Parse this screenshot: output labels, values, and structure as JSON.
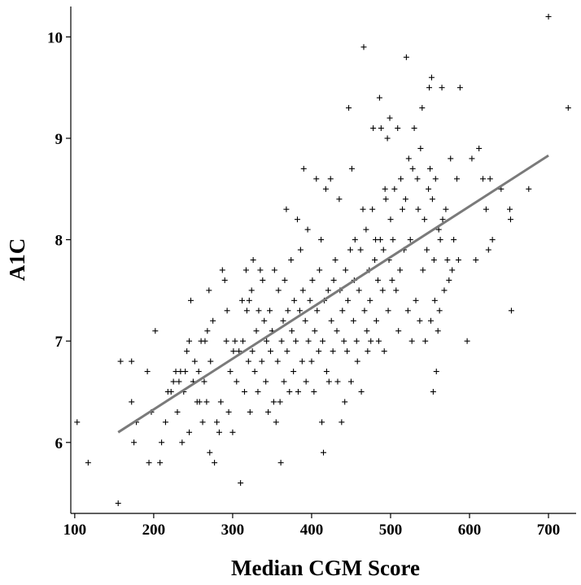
{
  "chart_data": {
    "type": "scatter",
    "title": "",
    "xlabel": "Median CGM Score",
    "ylabel": "A1C",
    "xlim": [
      95,
      735
    ],
    "ylim": [
      5.3,
      10.3
    ],
    "xticks": [
      100,
      200,
      300,
      400,
      500,
      600,
      700
    ],
    "yticks": [
      6,
      7,
      8,
      9,
      10
    ],
    "marker": "+",
    "grid": false,
    "legend": "none",
    "colors": {
      "points": "#000000",
      "fit_line": "#7a7a7a"
    },
    "fit_line": {
      "x": [
        155,
        700
      ],
      "y": [
        6.1,
        8.83
      ]
    },
    "series": [
      {
        "points": [
          [
            103,
            6.2
          ],
          [
            117,
            5.8
          ],
          [
            155,
            5.4
          ],
          [
            158,
            6.8
          ],
          [
            172,
            6.8
          ],
          [
            172,
            6.4
          ],
          [
            175,
            6.0
          ],
          [
            178,
            6.2
          ],
          [
            192,
            6.7
          ],
          [
            194,
            5.8
          ],
          [
            197,
            6.3
          ],
          [
            202,
            7.1
          ],
          [
            208,
            5.8
          ],
          [
            210,
            6.0
          ],
          [
            215,
            6.2
          ],
          [
            218,
            6.5
          ],
          [
            222,
            6.5
          ],
          [
            225,
            6.6
          ],
          [
            228,
            6.7
          ],
          [
            230,
            6.3
          ],
          [
            232,
            6.6
          ],
          [
            234,
            6.7
          ],
          [
            236,
            6.0
          ],
          [
            238,
            6.5
          ],
          [
            240,
            6.7
          ],
          [
            242,
            6.9
          ],
          [
            245,
            7.0
          ],
          [
            245,
            6.1
          ],
          [
            247,
            7.4
          ],
          [
            250,
            6.6
          ],
          [
            252,
            6.8
          ],
          [
            255,
            6.4
          ],
          [
            257,
            6.7
          ],
          [
            258,
            6.4
          ],
          [
            260,
            7.0
          ],
          [
            262,
            6.2
          ],
          [
            264,
            6.6
          ],
          [
            265,
            7.0
          ],
          [
            267,
            6.4
          ],
          [
            268,
            7.1
          ],
          [
            270,
            7.5
          ],
          [
            271,
            5.9
          ],
          [
            272,
            6.8
          ],
          [
            275,
            7.2
          ],
          [
            277,
            5.8
          ],
          [
            280,
            6.2
          ],
          [
            283,
            6.1
          ],
          [
            285,
            6.4
          ],
          [
            287,
            7.7
          ],
          [
            290,
            7.6
          ],
          [
            292,
            7.0
          ],
          [
            293,
            7.3
          ],
          [
            295,
            6.3
          ],
          [
            297,
            6.7
          ],
          [
            300,
            6.1
          ],
          [
            301,
            6.9
          ],
          [
            303,
            7.0
          ],
          [
            305,
            6.6
          ],
          [
            308,
            6.9
          ],
          [
            310,
            5.6
          ],
          [
            312,
            7.4
          ],
          [
            313,
            7.0
          ],
          [
            315,
            6.5
          ],
          [
            317,
            7.7
          ],
          [
            318,
            7.3
          ],
          [
            320,
            6.8
          ],
          [
            321,
            7.4
          ],
          [
            322,
            6.3
          ],
          [
            324,
            7.5
          ],
          [
            325,
            6.9
          ],
          [
            326,
            7.8
          ],
          [
            328,
            6.7
          ],
          [
            330,
            7.1
          ],
          [
            332,
            6.5
          ],
          [
            333,
            7.3
          ],
          [
            335,
            7.7
          ],
          [
            337,
            6.8
          ],
          [
            338,
            7.6
          ],
          [
            340,
            7.2
          ],
          [
            342,
            6.6
          ],
          [
            343,
            7.0
          ],
          [
            345,
            6.3
          ],
          [
            347,
            7.3
          ],
          [
            348,
            6.9
          ],
          [
            350,
            7.1
          ],
          [
            352,
            6.4
          ],
          [
            353,
            7.7
          ],
          [
            355,
            6.2
          ],
          [
            357,
            6.8
          ],
          [
            358,
            7.5
          ],
          [
            360,
            6.4
          ],
          [
            361,
            5.8
          ],
          [
            362,
            7.0
          ],
          [
            364,
            7.2
          ],
          [
            365,
            6.6
          ],
          [
            366,
            7.6
          ],
          [
            368,
            8.3
          ],
          [
            369,
            6.9
          ],
          [
            370,
            7.3
          ],
          [
            372,
            6.5
          ],
          [
            374,
            7.8
          ],
          [
            375,
            7.1
          ],
          [
            377,
            6.7
          ],
          [
            378,
            7.4
          ],
          [
            380,
            7.0
          ],
          [
            382,
            8.2
          ],
          [
            383,
            6.5
          ],
          [
            385,
            7.3
          ],
          [
            386,
            7.9
          ],
          [
            388,
            6.8
          ],
          [
            389,
            7.5
          ],
          [
            390,
            8.7
          ],
          [
            392,
            7.2
          ],
          [
            393,
            6.6
          ],
          [
            395,
            8.1
          ],
          [
            396,
            7.0
          ],
          [
            398,
            7.4
          ],
          [
            400,
            6.8
          ],
          [
            401,
            7.6
          ],
          [
            403,
            6.5
          ],
          [
            404,
            7.1
          ],
          [
            406,
            8.6
          ],
          [
            407,
            7.3
          ],
          [
            409,
            6.9
          ],
          [
            410,
            7.7
          ],
          [
            412,
            8.0
          ],
          [
            413,
            6.2
          ],
          [
            414,
            7.0
          ],
          [
            415,
            5.9
          ],
          [
            416,
            7.4
          ],
          [
            418,
            8.5
          ],
          [
            419,
            6.7
          ],
          [
            421,
            7.5
          ],
          [
            422,
            6.6
          ],
          [
            424,
            8.6
          ],
          [
            425,
            7.2
          ],
          [
            427,
            6.9
          ],
          [
            428,
            7.6
          ],
          [
            430,
            7.8
          ],
          [
            432,
            7.1
          ],
          [
            433,
            6.6
          ],
          [
            435,
            8.4
          ],
          [
            436,
            7.5
          ],
          [
            438,
            6.2
          ],
          [
            439,
            7.3
          ],
          [
            441,
            7.0
          ],
          [
            442,
            6.4
          ],
          [
            443,
            7.7
          ],
          [
            445,
            6.9
          ],
          [
            446,
            7.4
          ],
          [
            447,
            9.3
          ],
          [
            449,
            7.9
          ],
          [
            450,
            6.6
          ],
          [
            451,
            8.7
          ],
          [
            453,
            7.2
          ],
          [
            454,
            7.6
          ],
          [
            455,
            8.0
          ],
          [
            457,
            7.0
          ],
          [
            458,
            6.8
          ],
          [
            460,
            7.5
          ],
          [
            462,
            7.9
          ],
          [
            463,
            6.5
          ],
          [
            465,
            8.3
          ],
          [
            466,
            9.9
          ],
          [
            467,
            7.3
          ],
          [
            469,
            8.1
          ],
          [
            470,
            7.1
          ],
          [
            471,
            6.9
          ],
          [
            473,
            7.7
          ],
          [
            474,
            7.4
          ],
          [
            475,
            7.0
          ],
          [
            477,
            8.3
          ],
          [
            478,
            9.1
          ],
          [
            480,
            7.8
          ],
          [
            481,
            8.0
          ],
          [
            482,
            7.2
          ],
          [
            484,
            7.6
          ],
          [
            485,
            7.0
          ],
          [
            486,
            9.4
          ],
          [
            487,
            8.0
          ],
          [
            488,
            9.1
          ],
          [
            490,
            7.5
          ],
          [
            491,
            7.9
          ],
          [
            492,
            6.9
          ],
          [
            493,
            8.5
          ],
          [
            494,
            8.4
          ],
          [
            496,
            9.0
          ],
          [
            497,
            7.3
          ],
          [
            498,
            7.8
          ],
          [
            499,
            9.2
          ],
          [
            500,
            8.2
          ],
          [
            502,
            7.6
          ],
          [
            503,
            8.0
          ],
          [
            505,
            8.5
          ],
          [
            507,
            7.5
          ],
          [
            509,
            9.1
          ],
          [
            510,
            7.1
          ],
          [
            512,
            7.7
          ],
          [
            513,
            8.6
          ],
          [
            515,
            8.3
          ],
          [
            517,
            7.9
          ],
          [
            519,
            8.4
          ],
          [
            520,
            9.8
          ],
          [
            522,
            7.3
          ],
          [
            523,
            8.8
          ],
          [
            525,
            8.0
          ],
          [
            527,
            7.0
          ],
          [
            528,
            8.7
          ],
          [
            530,
            9.1
          ],
          [
            532,
            7.4
          ],
          [
            534,
            8.6
          ],
          [
            535,
            8.3
          ],
          [
            537,
            7.2
          ],
          [
            538,
            8.9
          ],
          [
            540,
            9.3
          ],
          [
            541,
            7.7
          ],
          [
            543,
            8.2
          ],
          [
            544,
            7.0
          ],
          [
            546,
            7.9
          ],
          [
            548,
            8.5
          ],
          [
            549,
            9.5
          ],
          [
            550,
            8.7
          ],
          [
            551,
            7.2
          ],
          [
            552,
            9.6
          ],
          [
            553,
            8.4
          ],
          [
            554,
            6.5
          ],
          [
            555,
            7.8
          ],
          [
            556,
            7.4
          ],
          [
            557,
            8.6
          ],
          [
            558,
            6.7
          ],
          [
            560,
            7.1
          ],
          [
            561,
            8.1
          ],
          [
            562,
            7.3
          ],
          [
            563,
            8.0
          ],
          [
            565,
            9.5
          ],
          [
            566,
            8.2
          ],
          [
            568,
            7.5
          ],
          [
            570,
            8.3
          ],
          [
            572,
            7.8
          ],
          [
            574,
            7.6
          ],
          [
            576,
            8.8
          ],
          [
            578,
            7.7
          ],
          [
            580,
            8.0
          ],
          [
            584,
            8.6
          ],
          [
            586,
            7.8
          ],
          [
            588,
            9.5
          ],
          [
            597,
            7.0
          ],
          [
            603,
            8.8
          ],
          [
            608,
            7.8
          ],
          [
            612,
            8.9
          ],
          [
            617,
            8.6
          ],
          [
            621,
            8.3
          ],
          [
            624,
            7.9
          ],
          [
            626,
            8.6
          ],
          [
            629,
            8.0
          ],
          [
            640,
            8.5
          ],
          [
            651,
            8.3
          ],
          [
            653,
            7.3
          ],
          [
            652,
            8.2
          ],
          [
            700,
            10.2
          ],
          [
            725,
            9.3
          ],
          [
            675,
            8.5
          ]
        ]
      }
    ]
  }
}
